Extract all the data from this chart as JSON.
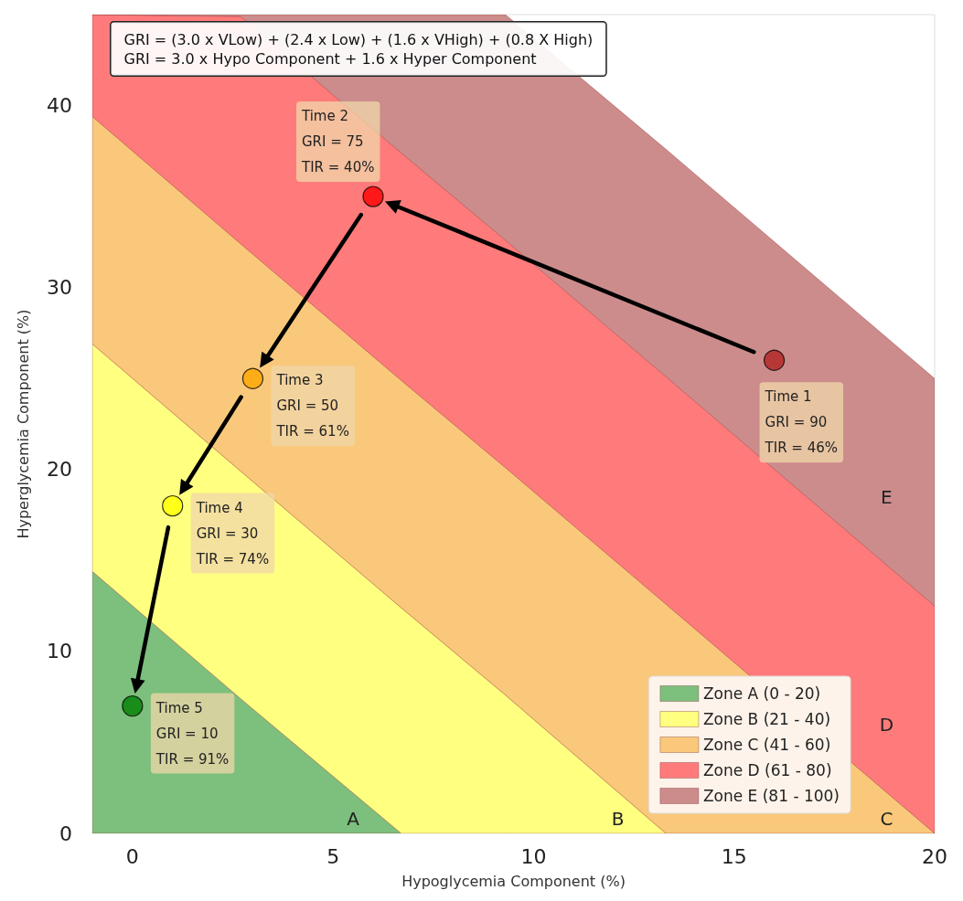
{
  "chart_data": {
    "type": "scatter",
    "stacked": true,
    "xlabel": "Hypoglycemia Component (%)",
    "ylabel": "Hyperglycemia Component (%)",
    "xlim": [
      -1,
      20
    ],
    "xticks": [
      0,
      5,
      10,
      15,
      20
    ],
    "ylim": [
      0,
      45
    ],
    "yticks": [
      0,
      10,
      20,
      30,
      40
    ],
    "grid": false,
    "legend": "bottom right",
    "x": [
      -1,
      2.7,
      6.7,
      9.3,
      13.3,
      20
    ],
    "series": [
      {
        "name": "Zone A (0 - 20)",
        "type": "area",
        "color": "#7dbf7d",
        "values": [
          14.4,
          7.4,
          0,
          0,
          0,
          0
        ]
      },
      {
        "name": "Zone B (21 - 40)",
        "type": "area",
        "color": "#ffff80",
        "values": [
          12.5,
          12.5,
          12.4,
          7.6,
          0,
          0
        ]
      },
      {
        "name": "Zone C (41 - 60)",
        "type": "area",
        "color": "#f9c87a",
        "values": [
          12.5,
          12.5,
          12.5,
          12.5,
          12.6,
          0
        ]
      },
      {
        "name": "Zone D (61 - 80)",
        "type": "area",
        "color": "#ff7b7b",
        "values": [
          5.6,
          12.5,
          12.5,
          12.5,
          12.5,
          12.5
        ]
      },
      {
        "name": "Zone E (81 - 100)",
        "type": "area",
        "color": "#cc8c8c",
        "values": [
          0,
          0.1,
          7.6,
          12.4,
          12.5,
          12.5
        ]
      },
      {
        "x": [
          16,
          6,
          3,
          1,
          0
        ],
        "values": [
          26,
          35,
          25,
          18,
          7
        ],
        "colors": [
          "#b22222",
          "#ff0000",
          "#ffa500",
          "#ffff00",
          "#008000"
        ]
      }
    ],
    "annotations": [
      "GRI = (3.0 x VLow) + (2.4 x Low) + (1.6 x VHigh) + (0.8 X High)",
      "GRI = 3.0 x Hypo Component + 1.6 x Hyper Component",
      {
        "text": "Time 1\nGRI = 90\nTIR = 46%",
        "x": 16,
        "y": 26
      },
      {
        "text": "Time 2\nGRI = 75\nTIR = 40%",
        "x": 6,
        "y": 35
      },
      {
        "text": "Time 3\nGRI = 50\nTIR = 61%",
        "x": 3,
        "y": 25
      },
      {
        "text": "Time 4\nGRI = 30\nTIR = 74%",
        "x": 1,
        "y": 18
      },
      {
        "text": "Time 5\nGRI = 10\nTIR = 91%",
        "x": 0,
        "y": 7
      },
      "A",
      "B",
      "C",
      "D",
      "E"
    ]
  }
}
